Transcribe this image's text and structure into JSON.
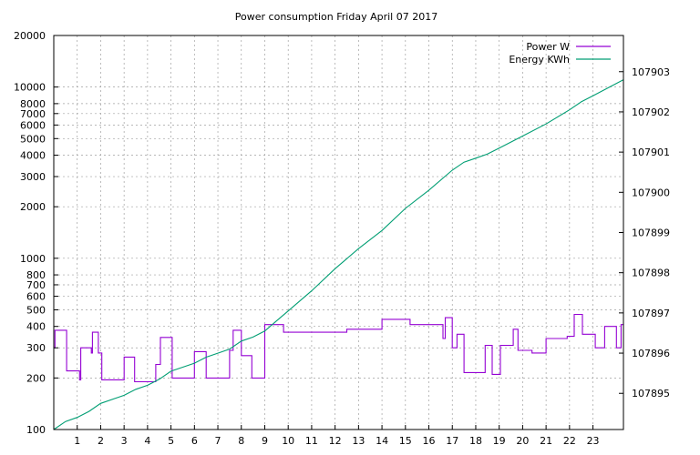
{
  "chart_data": {
    "type": "line",
    "title": "Power consumption Friday April 07 2017",
    "xlabel": "",
    "ylabel": "",
    "y2label": "",
    "grid": true,
    "legend_position": "top-right",
    "x_ticks": [
      1,
      2,
      3,
      4,
      5,
      6,
      7,
      8,
      9,
      10,
      11,
      12,
      13,
      14,
      15,
      16,
      17,
      18,
      19,
      20,
      21,
      22,
      23
    ],
    "xlim": [
      0,
      24.3
    ],
    "y_scale": "log",
    "ylim": [
      100,
      20000
    ],
    "y_ticks": [
      100,
      200,
      300,
      400,
      500,
      600,
      700,
      800,
      1000,
      2000,
      3000,
      4000,
      5000,
      6000,
      7000,
      8000,
      10000,
      20000
    ],
    "y2lim": [
      107894.1,
      107903.9
    ],
    "y2_ticks": [
      107895,
      107896,
      107897,
      107898,
      107899,
      107900,
      107901,
      107902,
      107903
    ],
    "colors": {
      "power": "#9400d3",
      "energy": "#009e73"
    },
    "series": [
      {
        "name": "Power W",
        "axis": "y",
        "step": true,
        "points": [
          [
            0,
            300
          ],
          [
            0.05,
            380
          ],
          [
            0.55,
            380
          ],
          [
            0.55,
            220
          ],
          [
            1.1,
            220
          ],
          [
            1.1,
            195
          ],
          [
            1.15,
            300
          ],
          [
            1.6,
            300
          ],
          [
            1.6,
            280
          ],
          [
            1.65,
            370
          ],
          [
            1.9,
            360
          ],
          [
            1.9,
            280
          ],
          [
            2.05,
            280
          ],
          [
            2.05,
            195
          ],
          [
            3,
            195
          ],
          [
            3,
            265
          ],
          [
            3.45,
            265
          ],
          [
            3.45,
            190
          ],
          [
            4.3,
            190
          ],
          [
            4.35,
            240
          ],
          [
            4.5,
            240
          ],
          [
            4.55,
            345
          ],
          [
            5,
            345
          ],
          [
            5.05,
            200
          ],
          [
            5.95,
            200
          ],
          [
            6,
            285
          ],
          [
            6.45,
            285
          ],
          [
            6.5,
            200
          ],
          [
            7.45,
            200
          ],
          [
            7.5,
            290
          ],
          [
            7.65,
            380
          ],
          [
            7.95,
            380
          ],
          [
            8,
            270
          ],
          [
            8.4,
            270
          ],
          [
            8.45,
            200
          ],
          [
            8.95,
            200
          ],
          [
            9,
            410
          ],
          [
            9.8,
            410
          ],
          [
            9.8,
            370
          ],
          [
            12.5,
            370
          ],
          [
            12.5,
            385
          ],
          [
            14,
            385
          ],
          [
            14,
            440
          ],
          [
            15.2,
            440
          ],
          [
            15.2,
            410
          ],
          [
            16.6,
            410
          ],
          [
            16.6,
            340
          ],
          [
            16.7,
            450
          ],
          [
            17,
            450
          ],
          [
            17,
            300
          ],
          [
            17.2,
            360
          ],
          [
            17.5,
            360
          ],
          [
            17.5,
            215
          ],
          [
            18.4,
            215
          ],
          [
            18.4,
            310
          ],
          [
            18.7,
            310
          ],
          [
            18.7,
            210
          ],
          [
            19,
            210
          ],
          [
            19.05,
            310
          ],
          [
            19.55,
            310
          ],
          [
            19.6,
            385
          ],
          [
            19.8,
            385
          ],
          [
            19.8,
            290
          ],
          [
            20.4,
            290
          ],
          [
            20.4,
            280
          ],
          [
            21,
            280
          ],
          [
            21,
            340
          ],
          [
            21.9,
            340
          ],
          [
            21.9,
            350
          ],
          [
            22.2,
            350
          ],
          [
            22.2,
            470
          ],
          [
            22.55,
            470
          ],
          [
            22.55,
            360
          ],
          [
            23.1,
            360
          ],
          [
            23.1,
            300
          ],
          [
            23.5,
            300
          ],
          [
            23.5,
            400
          ],
          [
            24,
            400
          ],
          [
            24,
            300
          ],
          [
            24.2,
            300
          ],
          [
            24.2,
            410
          ],
          [
            24.3,
            410
          ]
        ]
      },
      {
        "name": "Energy KWh",
        "axis": "y2",
        "step": false,
        "points": [
          [
            0,
            107894.1
          ],
          [
            0.5,
            107894.3
          ],
          [
            1,
            107894.4
          ],
          [
            1.5,
            107894.55
          ],
          [
            2,
            107894.75
          ],
          [
            3,
            107894.95
          ],
          [
            3.5,
            107895.1
          ],
          [
            4,
            107895.2
          ],
          [
            4.5,
            107895.35
          ],
          [
            5,
            107895.55
          ],
          [
            5.5,
            107895.65
          ],
          [
            6,
            107895.75
          ],
          [
            6.5,
            107895.9
          ],
          [
            7,
            107896.0
          ],
          [
            7.5,
            107896.1
          ],
          [
            8,
            107896.3
          ],
          [
            8.5,
            107896.4
          ],
          [
            9,
            107896.55
          ],
          [
            9.5,
            107896.8
          ],
          [
            10,
            107897.05
          ],
          [
            11,
            107897.55
          ],
          [
            12,
            107898.1
          ],
          [
            13,
            107898.6
          ],
          [
            14,
            107899.05
          ],
          [
            15,
            107899.6
          ],
          [
            16,
            107900.05
          ],
          [
            17,
            107900.55
          ],
          [
            17.5,
            107900.75
          ],
          [
            18,
            107900.85
          ],
          [
            18.5,
            107900.95
          ],
          [
            19,
            107901.1
          ],
          [
            20,
            107901.4
          ],
          [
            21,
            107901.7
          ],
          [
            22,
            107902.05
          ],
          [
            22.5,
            107902.25
          ],
          [
            23,
            107902.4
          ],
          [
            24.3,
            107902.8
          ]
        ]
      }
    ]
  }
}
